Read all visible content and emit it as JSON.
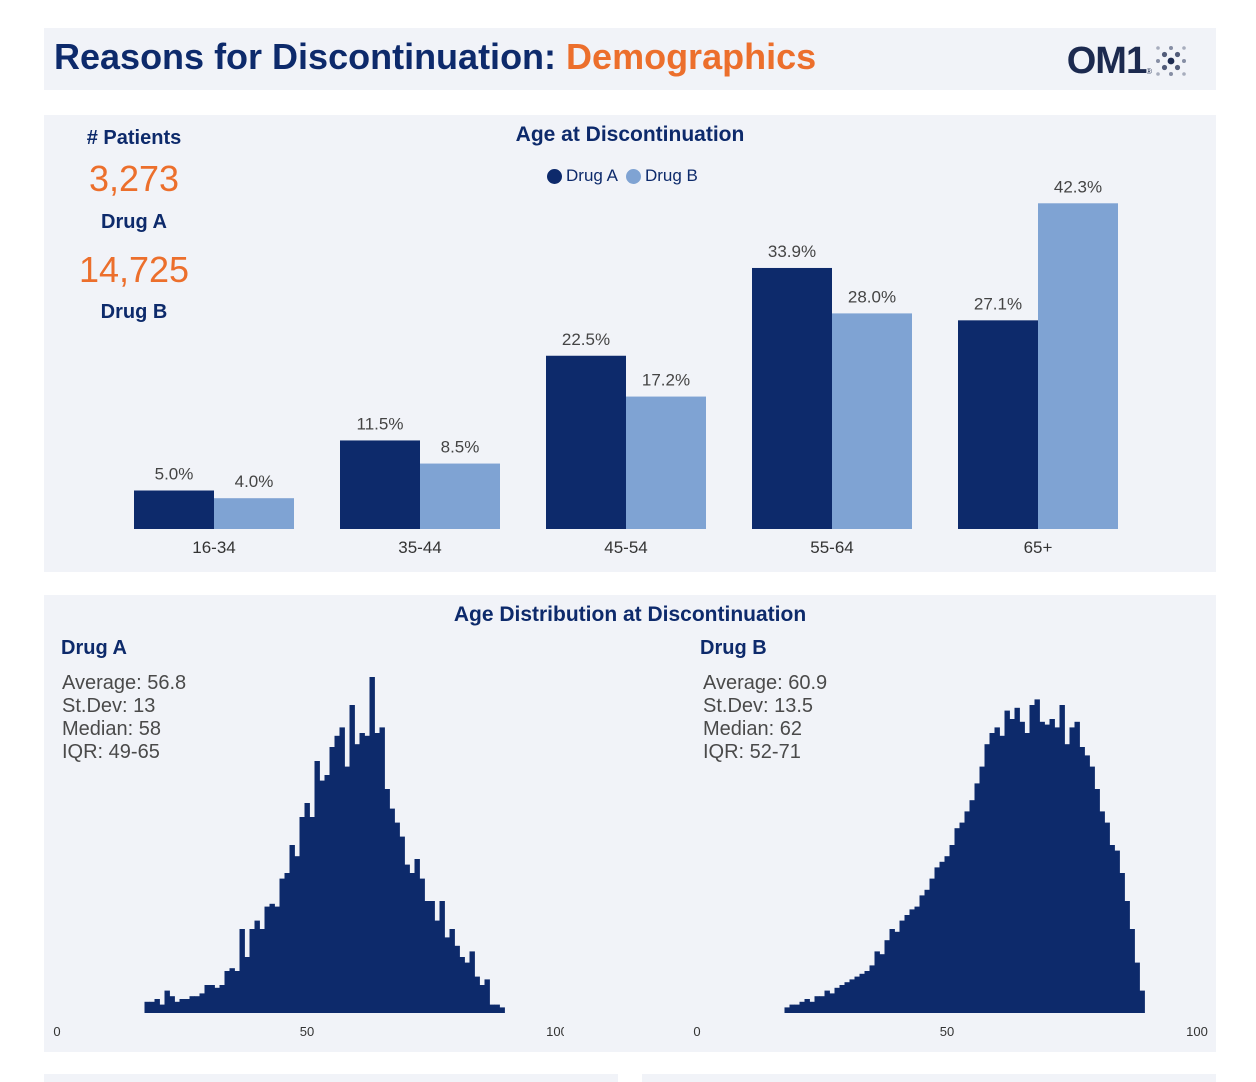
{
  "header": {
    "title_main": "Reasons for Discontinuation: ",
    "title_accent": "Demographics",
    "logo_text": "OM1",
    "logo_mark": "®"
  },
  "colors": {
    "navy": "#0d2a6b",
    "light_blue": "#7fa3d3",
    "orange": "#ec6f2c",
    "panel": "#f1f3f8"
  },
  "patients": {
    "label": "# Patients",
    "drug_a_count": "3,273",
    "drug_a_label": "Drug A",
    "drug_b_count": "14,725",
    "drug_b_label": "Drug B"
  },
  "chart_data": [
    {
      "type": "bar",
      "title": "Age at Discontinuation",
      "categories": [
        "16-34",
        "35-44",
        "45-54",
        "55-64",
        "65+"
      ],
      "series": [
        {
          "name": "Drug A",
          "values": [
            5.0,
            11.5,
            22.5,
            33.9,
            27.1
          ],
          "labels": [
            "5.0%",
            "11.5%",
            "22.5%",
            "33.9%",
            "27.1%"
          ]
        },
        {
          "name": "Drug B",
          "values": [
            4.0,
            8.5,
            17.2,
            28.0,
            42.3
          ],
          "labels": [
            "4.0%",
            "8.5%",
            "17.2%",
            "28.0%",
            "42.3%"
          ]
        }
      ],
      "ylim": [
        0,
        45
      ],
      "legend": "top-center",
      "grid": false
    },
    {
      "type": "bar",
      "title": "Age Distribution at Discontinuation",
      "subtitle": "Drug A",
      "x": [
        18,
        19,
        20,
        21,
        22,
        23,
        24,
        25,
        26,
        27,
        28,
        29,
        30,
        31,
        32,
        33,
        34,
        35,
        36,
        37,
        38,
        39,
        40,
        41,
        42,
        43,
        44,
        45,
        46,
        47,
        48,
        49,
        50,
        51,
        52,
        53,
        54,
        55,
        56,
        57,
        58,
        59,
        60,
        61,
        62,
        63,
        64,
        65,
        66,
        67,
        68,
        69,
        70,
        71,
        72,
        73,
        74,
        75,
        76,
        77,
        78,
        79,
        80,
        81,
        82,
        83,
        84,
        85,
        86,
        87,
        88,
        89
      ],
      "values": [
        4,
        4,
        5,
        3,
        8,
        6,
        4,
        5,
        5,
        6,
        6,
        7,
        10,
        10,
        9,
        10,
        15,
        16,
        15,
        30,
        20,
        30,
        33,
        30,
        38,
        39,
        38,
        48,
        50,
        60,
        56,
        70,
        75,
        70,
        90,
        83,
        85,
        95,
        99,
        102,
        88,
        110,
        96,
        100,
        99,
        120,
        100,
        102,
        80,
        73,
        68,
        63,
        53,
        50,
        55,
        48,
        40,
        40,
        33,
        40,
        27,
        30,
        24,
        20,
        18,
        22,
        13,
        10,
        12,
        3,
        3,
        2
      ],
      "xlim": [
        0,
        100
      ],
      "xticks": [
        0,
        50,
        100
      ],
      "stats": {
        "average": "Average: 56.8",
        "stdev": "St.Dev: 13",
        "median": "Median: 58",
        "iqr": "IQR: 49-65"
      }
    },
    {
      "type": "bar",
      "title": "Age Distribution at Discontinuation",
      "subtitle": "Drug B",
      "x": [
        18,
        19,
        20,
        21,
        22,
        23,
        24,
        25,
        26,
        27,
        28,
        29,
        30,
        31,
        32,
        33,
        34,
        35,
        36,
        37,
        38,
        39,
        40,
        41,
        42,
        43,
        44,
        45,
        46,
        47,
        48,
        49,
        50,
        51,
        52,
        53,
        54,
        55,
        56,
        57,
        58,
        59,
        60,
        61,
        62,
        63,
        64,
        65,
        66,
        67,
        68,
        69,
        70,
        71,
        72,
        73,
        74,
        75,
        76,
        77,
        78,
        79,
        80,
        81,
        82,
        83,
        84,
        85,
        86,
        87,
        88,
        89
      ],
      "values": [
        2,
        3,
        3,
        4,
        5,
        4,
        6,
        6,
        8,
        7,
        9,
        10,
        11,
        12,
        13,
        14,
        15,
        17,
        22,
        21,
        26,
        30,
        29,
        33,
        35,
        37,
        38,
        42,
        44,
        48,
        52,
        54,
        56,
        60,
        66,
        68,
        72,
        76,
        82,
        88,
        96,
        100,
        102,
        99,
        108,
        105,
        109,
        104,
        100,
        110,
        112,
        104,
        103,
        105,
        102,
        110,
        96,
        102,
        104,
        95,
        92,
        88,
        80,
        72,
        68,
        60,
        58,
        50,
        40,
        30,
        18,
        8
      ],
      "xlim": [
        0,
        100
      ],
      "xticks": [
        0,
        50,
        100
      ],
      "stats": {
        "average": "Average: 60.9",
        "stdev": "St.Dev: 13.5",
        "median": "Median: 62",
        "iqr": "IQR: 52-71"
      }
    }
  ]
}
